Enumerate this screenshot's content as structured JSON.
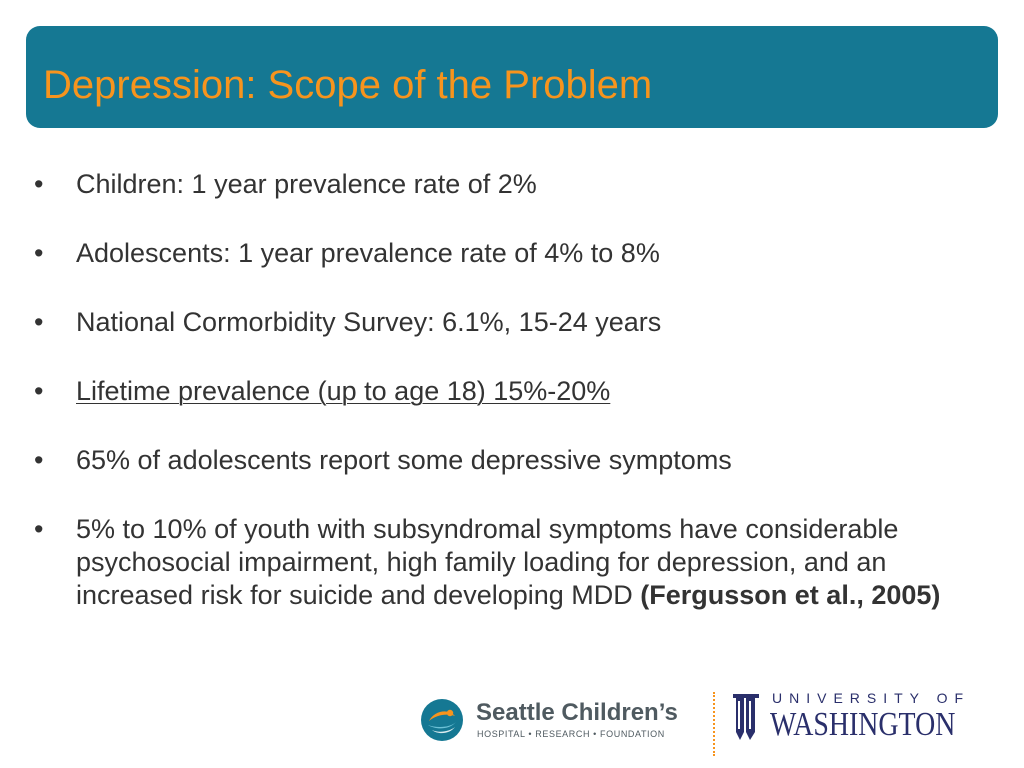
{
  "slide": {
    "title": "Depression: Scope of the Problem",
    "colors": {
      "banner": "#157893",
      "title": "#f7941d",
      "body_text": "#333333",
      "divider": "#f7941d",
      "uw_purple": "#2a2f6b",
      "sc_gray": "#4f5a60"
    }
  },
  "bullets": [
    {
      "marker": "•",
      "text": "Children: 1 year prevalence rate of 2%"
    },
    {
      "marker": "•",
      "text": "Adolescents: 1 year prevalence rate of 4% to 8%"
    },
    {
      "marker": "•",
      "text": "National Cormorbidity Survey: 6.1%, 15-24 years"
    },
    {
      "marker": "•",
      "text": "Lifetime prevalence (up to age 18) 15%-20%"
    },
    {
      "marker": "•",
      "text": "65% of adolescents report some depressive symptoms"
    },
    {
      "marker": "•",
      "text": "5% to 10% of youth with subsyndromal symptoms have considerable psychosocial impairment, high family loading for depression, and an increased risk for suicide and developing MDD ",
      "citation": "(Fergusson et al., 2005)"
    }
  ],
  "footer": {
    "seattle_childrens": {
      "name": "Seattle Children’s",
      "tagline": "HOSPITAL • RESEARCH • FOUNDATION",
      "icon": "seattle-childrens-logo-mark"
    },
    "uw": {
      "top_line": "UNIVERSITY OF",
      "bottom_line": "WASHINGTON",
      "icon": "uw-logo-mark"
    }
  }
}
